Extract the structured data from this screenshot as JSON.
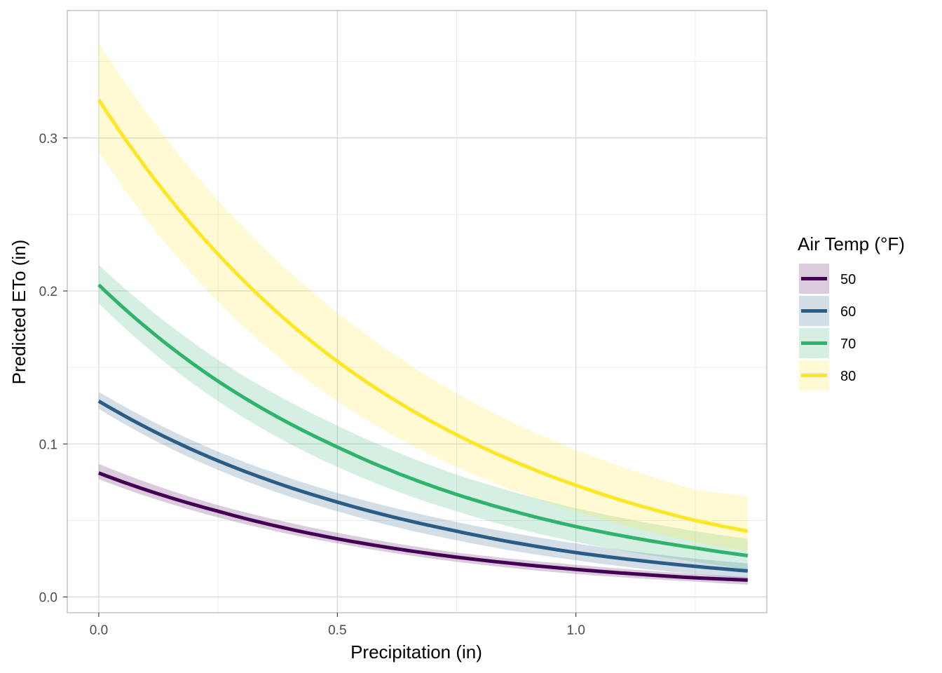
{
  "chart_data": {
    "type": "line",
    "title": "",
    "xlabel": "Precipitation (in)",
    "ylabel": "Predicted ETo (in)",
    "xlim": [
      -0.066,
      1.4
    ],
    "ylim": [
      -0.0103,
      0.3833
    ],
    "x_ticks": [
      0.0,
      0.5,
      1.0
    ],
    "x_tick_labels": [
      "0.0",
      "0.5",
      "1.0"
    ],
    "y_ticks": [
      0.0,
      0.1,
      0.2,
      0.3
    ],
    "y_tick_labels": [
      "0.0",
      "0.1",
      "0.2",
      "0.3"
    ],
    "x_minor": [
      0.25,
      0.75,
      1.25
    ],
    "y_minor": [
      0.05,
      0.15,
      0.25,
      0.35
    ],
    "grid": true,
    "legend": {
      "title": "Air Temp (°F)",
      "position": "right"
    },
    "x_range": [
      0.0,
      1.36
    ],
    "series": [
      {
        "name": "50",
        "color": "#440154",
        "fill": "#d5c7da",
        "x": [
          0.0,
          0.25,
          0.5,
          0.75,
          1.0,
          1.25,
          1.36
        ],
        "y": [
          0.081,
          0.056,
          0.038,
          0.026,
          0.018,
          0.0125,
          0.011
        ],
        "lower": [
          0.077,
          0.052,
          0.035,
          0.023,
          0.015,
          0.01,
          0.008
        ],
        "upper": [
          0.087,
          0.06,
          0.042,
          0.029,
          0.021,
          0.015,
          0.013
        ]
      },
      {
        "name": "60",
        "color": "#2a5c86",
        "fill": "#d3dce6",
        "x": [
          0.0,
          0.25,
          0.5,
          0.75,
          1.0,
          1.25,
          1.36
        ],
        "y": [
          0.128,
          0.089,
          0.062,
          0.043,
          0.029,
          0.02,
          0.017
        ],
        "lower": [
          0.123,
          0.083,
          0.056,
          0.037,
          0.024,
          0.015,
          0.012
        ],
        "upper": [
          0.134,
          0.095,
          0.068,
          0.049,
          0.035,
          0.025,
          0.022
        ]
      },
      {
        "name": "70",
        "color": "#2fb36d",
        "fill": "#d5eedf",
        "x": [
          0.0,
          0.25,
          0.5,
          0.75,
          1.0,
          1.25,
          1.36
        ],
        "y": [
          0.204,
          0.141,
          0.098,
          0.067,
          0.046,
          0.032,
          0.027
        ],
        "lower": [
          0.192,
          0.128,
          0.085,
          0.056,
          0.036,
          0.023,
          0.018
        ],
        "upper": [
          0.217,
          0.155,
          0.112,
          0.08,
          0.058,
          0.043,
          0.038
        ]
      },
      {
        "name": "80",
        "color": "#fde725",
        "fill": "#fdf9d3",
        "x": [
          0.0,
          0.25,
          0.5,
          0.75,
          1.0,
          1.25,
          1.36
        ],
        "y": [
          0.325,
          0.224,
          0.154,
          0.106,
          0.073,
          0.05,
          0.043
        ],
        "lower": [
          0.291,
          0.193,
          0.128,
          0.085,
          0.056,
          0.036,
          0.03
        ],
        "upper": [
          0.362,
          0.259,
          0.186,
          0.133,
          0.096,
          0.07,
          0.066
        ]
      }
    ]
  },
  "colors": {
    "panel_border": "#b3b3b3",
    "grid_major": "#d9d9d9",
    "grid_minor": "#ececec"
  }
}
